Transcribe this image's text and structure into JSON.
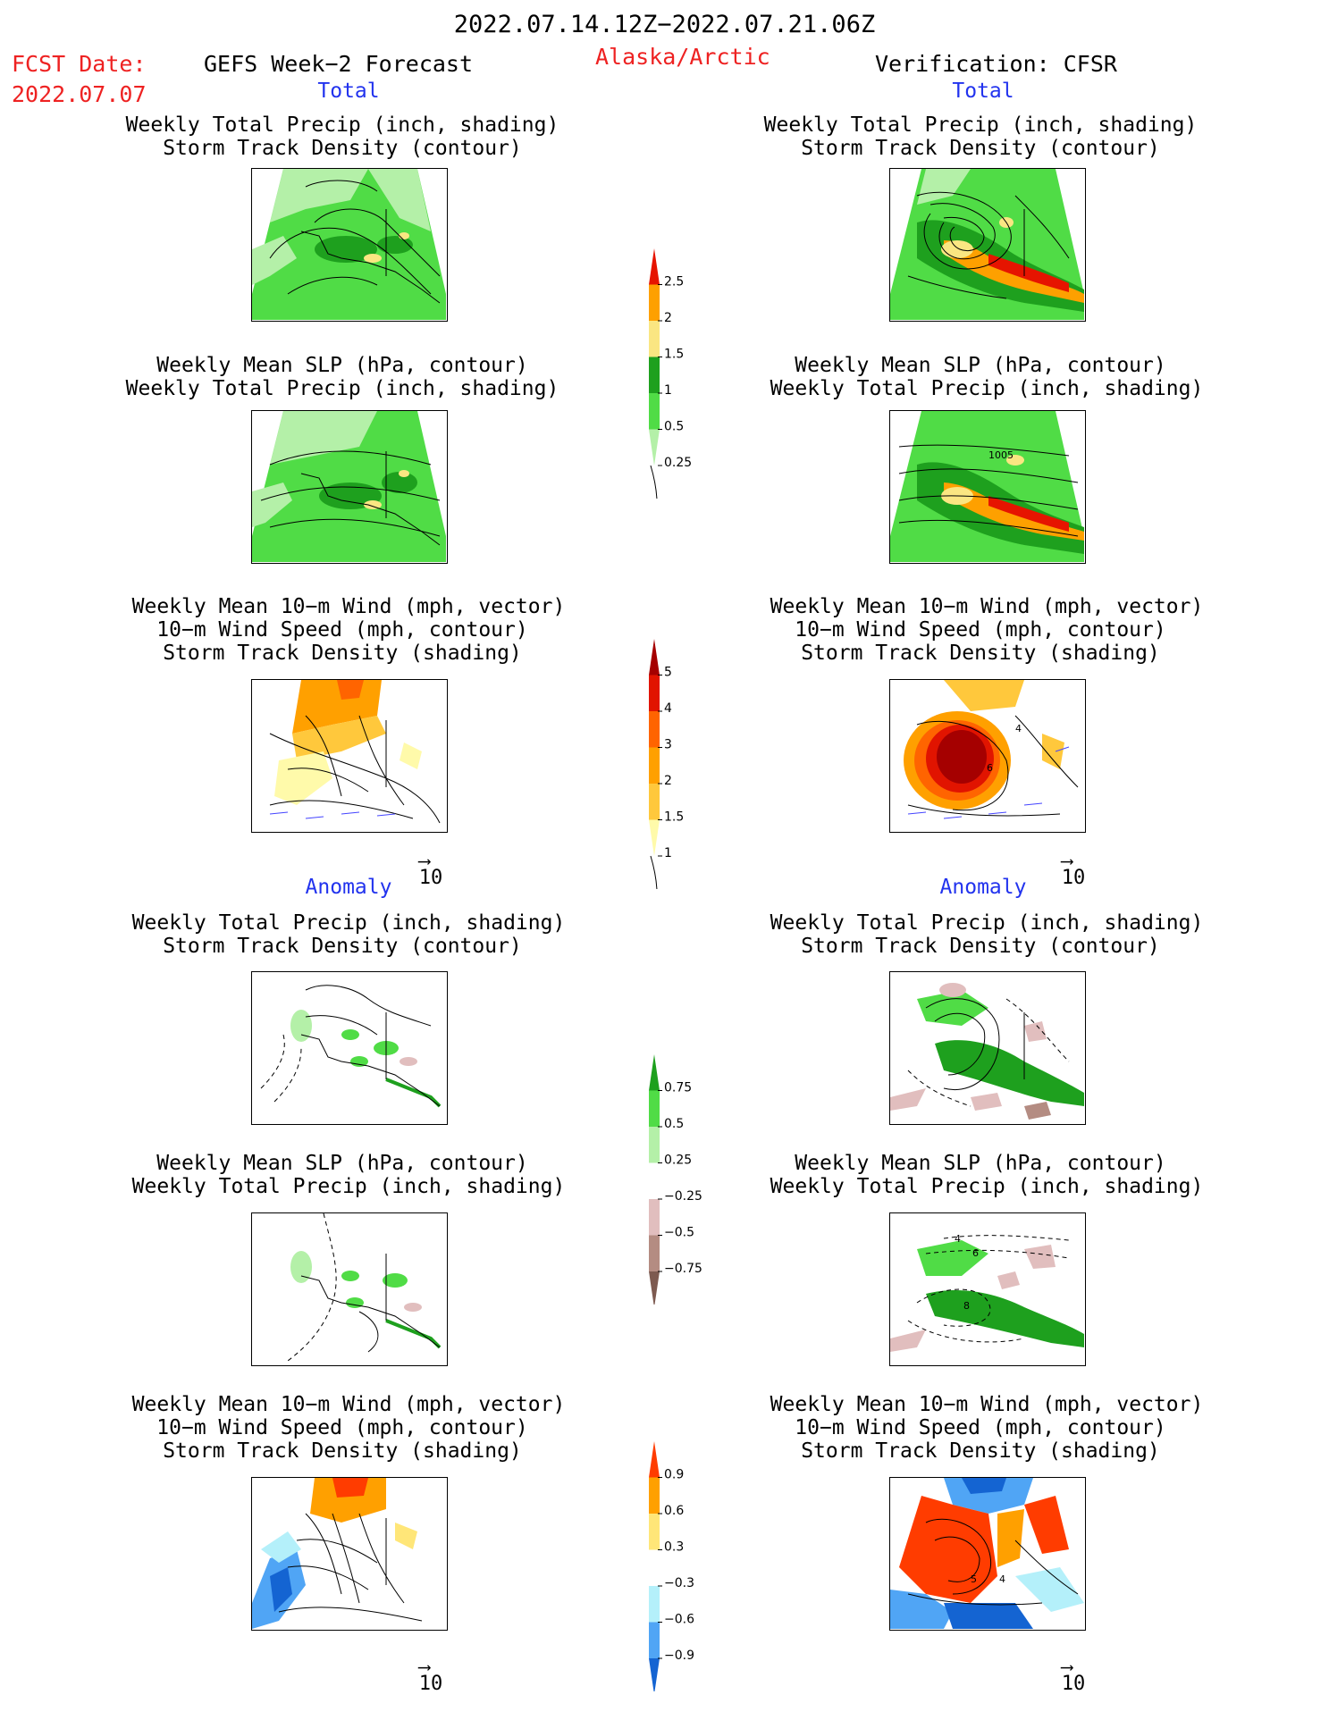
{
  "header": {
    "valid_period": "2022.07.14.12Z−2022.07.21.06Z",
    "fcst_label": "FCST Date:",
    "fcst_date": "2022.07.07",
    "model": "GEFS Week−2 Forecast",
    "region": "Alaska/Arctic",
    "verification": "Verification: CFSR"
  },
  "sections": {
    "total": "Total",
    "anomaly": "Anomaly"
  },
  "panel_titles": {
    "precip_track": [
      "Weekly Total Precip (inch, shading)",
      "Storm Track Density (contour)"
    ],
    "slp_precip": [
      "Weekly Mean SLP (hPa, contour)",
      "Weekly Total Precip (inch, shading)"
    ],
    "wind_track": [
      "Weekly Mean 10−m Wind (mph, vector)",
      "10−m Wind Speed (mph, contour)",
      "Storm Track Density (shading)"
    ]
  },
  "vector_reference": "10",
  "contour_labels": {
    "total_slp_cfsr": "1005",
    "total_wind_cfsr": [
      "4",
      "6"
    ],
    "anom_slp_cfsr": [
      "4",
      "6",
      "8"
    ],
    "anom_wind_cfsr": [
      "5",
      "4"
    ]
  },
  "colors": {
    "precip_total": [
      "#b4f0a8",
      "#50dc46",
      "#1ea01e",
      "#fae682",
      "#fea000",
      "#e61400"
    ],
    "track_total": [
      "#fffaaa",
      "#ffc83c",
      "#ffa000",
      "#ff6400",
      "#e11400",
      "#a50000"
    ],
    "precip_anom": [
      "#1ea01e",
      "#50dc46",
      "#b4f0a8",
      "#ffffff",
      "#e1bebe",
      "#b48c82",
      "#7d5a50"
    ],
    "track_anom": [
      "#ff3c00",
      "#ffa000",
      "#ffe678",
      "#ffffff",
      "#b4f0fa",
      "#50a5f5",
      "#1464d2"
    ],
    "title_blue": "#2233ee",
    "title_red": "#ee2222"
  },
  "chart_data": {
    "type": "heatmap",
    "legends": [
      {
        "name": "precip_total",
        "ticks": [
          "2.5",
          "2",
          "1.5",
          "1",
          "0.5",
          "0.25"
        ]
      },
      {
        "name": "track_total",
        "ticks": [
          "5",
          "4",
          "3",
          "2",
          "1.5",
          "1"
        ]
      },
      {
        "name": "precip_anom",
        "ticks": [
          "0.75",
          "0.5",
          "0.25",
          "−0.25",
          "−0.5",
          "−0.75"
        ]
      },
      {
        "name": "track_anom",
        "ticks": [
          "0.9",
          "0.6",
          "0.3",
          "−0.3",
          "−0.6",
          "−0.9"
        ]
      }
    ]
  }
}
